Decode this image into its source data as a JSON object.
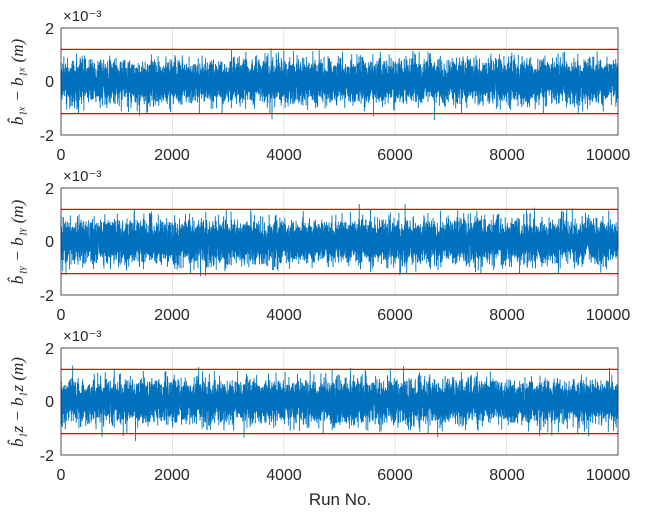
{
  "chart_data": [
    {
      "type": "line",
      "ylabel": "b̂₁ₓ − b₁ₓ (m)",
      "exponent_label": "×10⁻³",
      "xlim": [
        0,
        10000
      ],
      "ylim": [
        -2,
        2
      ],
      "x_ticks": [
        "0",
        "2000",
        "4000",
        "6000",
        "8000",
        "10000"
      ],
      "y_ticks": [
        "-2",
        "0",
        "2"
      ],
      "grid": true,
      "series": [
        {
          "color": "#0072BD",
          "n_runs": 10000,
          "std": 0.38,
          "min": -1.45,
          "max": 1.72
        }
      ],
      "threshold_lines": [
        {
          "value": 1.2,
          "color": "#E8000B"
        },
        {
          "value": -1.2,
          "color": "#E8000B"
        }
      ]
    },
    {
      "type": "line",
      "ylabel": "b̂₁ᵧ − b₁ᵧ (m)",
      "exponent_label": "×10⁻³",
      "xlim": [
        0,
        10000
      ],
      "ylim": [
        -2,
        2
      ],
      "x_ticks": [
        "0",
        "2000",
        "4000",
        "6000",
        "8000",
        "10000"
      ],
      "y_ticks": [
        "-2",
        "0",
        "2"
      ],
      "grid": true,
      "series": [
        {
          "color": "#0072BD",
          "n_runs": 10000,
          "std": 0.38,
          "min": -1.3,
          "max": 1.4
        }
      ],
      "threshold_lines": [
        {
          "value": 1.2,
          "color": "#E8000B"
        },
        {
          "value": -1.2,
          "color": "#E8000B"
        }
      ]
    },
    {
      "type": "line",
      "ylabel": "b̂₁z − b₁z (m)",
      "exponent_label": "×10⁻³",
      "xlabel": "Run No.",
      "xlim": [
        0,
        10000
      ],
      "ylim": [
        -2,
        2
      ],
      "x_ticks": [
        "0",
        "2000",
        "4000",
        "6000",
        "8000",
        "10000"
      ],
      "y_ticks": [
        "-2",
        "0",
        "2"
      ],
      "grid": true,
      "series": [
        {
          "color": "#0072BD",
          "n_runs": 10000,
          "std": 0.38,
          "min": -1.5,
          "max": 1.6
        }
      ],
      "threshold_lines": [
        {
          "value": 1.2,
          "color": "#E8000B"
        },
        {
          "value": -1.2,
          "color": "#E8000B"
        }
      ]
    }
  ]
}
